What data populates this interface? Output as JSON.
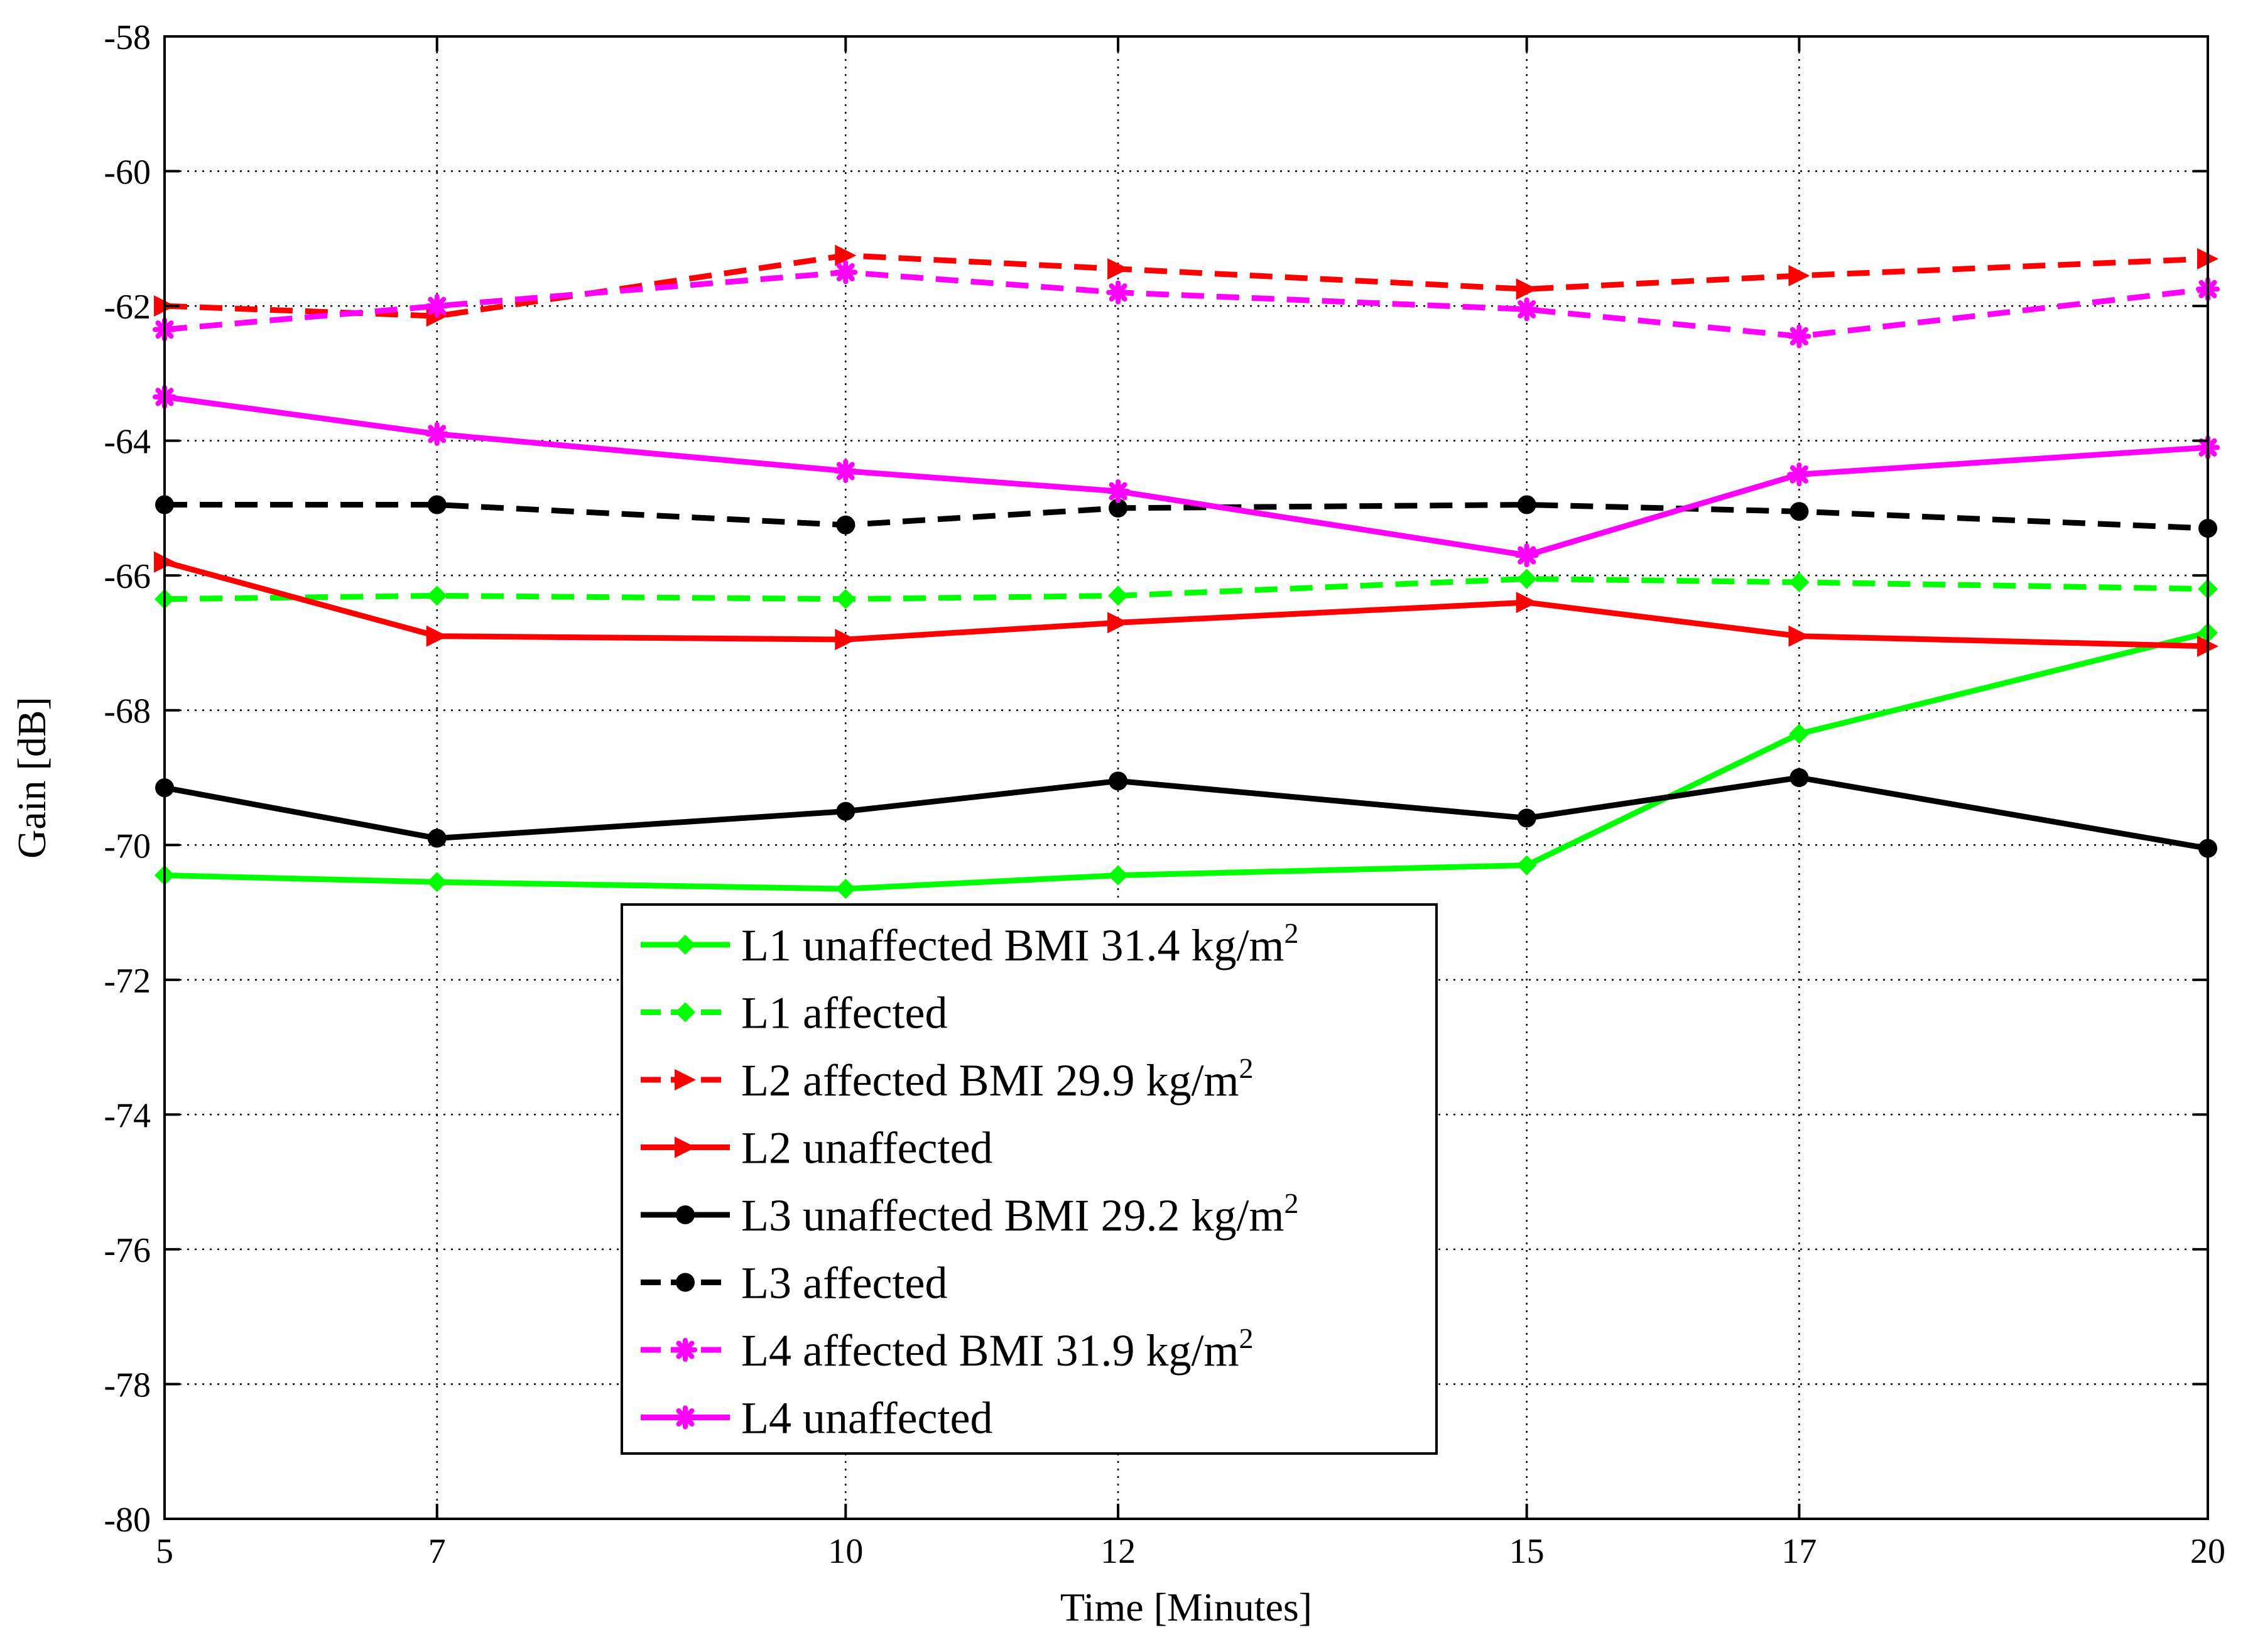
{
  "chart_data": {
    "type": "line",
    "title": "",
    "xlabel": "Time [Minutes]",
    "ylabel": "Gain [dB]",
    "xlim": [
      5,
      20
    ],
    "ylim": [
      -80,
      -58
    ],
    "grid": true,
    "x": [
      5,
      7,
      10,
      12,
      15,
      17,
      20
    ],
    "x_tick_labels": [
      "5",
      "7",
      "10",
      "12",
      "15",
      "17",
      "20"
    ],
    "y_ticks": [
      -80,
      -78,
      -76,
      -74,
      -72,
      -70,
      -68,
      -66,
      -64,
      -62,
      -60,
      -58
    ],
    "y_tick_labels": [
      "-80",
      "-78",
      "-76",
      "-74",
      "-72",
      "-70",
      "-68",
      "-66",
      "-64",
      "-62",
      "-60",
      "-58"
    ],
    "legend_position": "lower-center",
    "series": [
      {
        "name": "L1 unaffected BMI 31.4 kg/m²",
        "label_main": "L1 unaffected BMI 31.4 kg/m",
        "label_sup": "2",
        "color": "#00ff00",
        "dash": "solid",
        "marker": "diamond",
        "values": [
          -70.45,
          -70.55,
          -70.65,
          -70.45,
          -70.3,
          -68.35,
          -66.85
        ]
      },
      {
        "name": "L1 affected",
        "label_main": "L1 affected",
        "label_sup": "",
        "color": "#00ff00",
        "dash": "dashed",
        "marker": "diamond",
        "values": [
          -66.35,
          -66.3,
          -66.35,
          -66.3,
          -66.05,
          -66.1,
          -66.2
        ]
      },
      {
        "name": "L2 affected BMI 29.9 kg/m²",
        "label_main": "L2 affected BMI 29.9 kg/m",
        "label_sup": "2",
        "color": "#ff0000",
        "dash": "dashed",
        "marker": "triangle-right",
        "values": [
          -62.0,
          -62.15,
          -61.25,
          -61.45,
          -61.75,
          -61.55,
          -61.3
        ]
      },
      {
        "name": "L2 unaffected",
        "label_main": "L2 unaffected",
        "label_sup": "",
        "color": "#ff0000",
        "dash": "solid",
        "marker": "triangle-right",
        "values": [
          -65.8,
          -66.9,
          -66.95,
          -66.7,
          -66.4,
          -66.9,
          -67.05
        ]
      },
      {
        "name": "L3 unaffected BMI 29.2 kg/m²",
        "label_main": "L3 unaffected BMI 29.2 kg/m",
        "label_sup": "2",
        "color": "#000000",
        "dash": "solid",
        "marker": "circle",
        "values": [
          -69.15,
          -69.9,
          -69.5,
          -69.05,
          -69.6,
          -69.0,
          -70.05
        ]
      },
      {
        "name": "L3 affected",
        "label_main": "L3 affected",
        "label_sup": "",
        "color": "#000000",
        "dash": "dashed",
        "marker": "circle",
        "values": [
          -64.95,
          -64.95,
          -65.25,
          -65.0,
          -64.95,
          -65.05,
          -65.3
        ]
      },
      {
        "name": "L4 affected BMI 31.9 kg/m²",
        "label_main": "L4 affected BMI 31.9 kg/m",
        "label_sup": "2",
        "color": "#ff00ff",
        "dash": "dashed",
        "marker": "asterisk",
        "values": [
          -62.35,
          -62.0,
          -61.5,
          -61.8,
          -62.05,
          -62.45,
          -61.75
        ]
      },
      {
        "name": "L4 unaffected",
        "label_main": "L4 unaffected",
        "label_sup": "",
        "color": "#ff00ff",
        "dash": "solid",
        "marker": "asterisk",
        "values": [
          -63.35,
          -63.9,
          -64.45,
          -64.75,
          -65.7,
          -64.5,
          -64.1
        ]
      }
    ]
  }
}
